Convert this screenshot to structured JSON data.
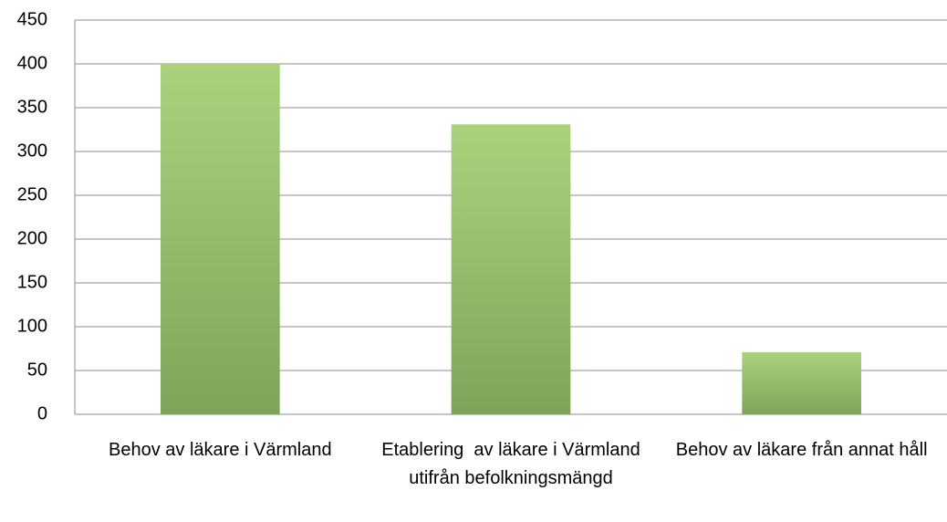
{
  "chart_data": {
    "type": "bar",
    "categories": [
      "Behov av läkare i Värmland",
      "Etablering  av läkare i Värmland utifrån befolkningsmängd",
      "Behov av läkare från annat håll"
    ],
    "values": [
      400,
      331,
      71
    ],
    "color": "#94bc6a",
    "ylim": [
      0,
      450
    ],
    "yticks": [
      0,
      50,
      100,
      150,
      200,
      250,
      300,
      350,
      400,
      450
    ],
    "grid": true
  }
}
